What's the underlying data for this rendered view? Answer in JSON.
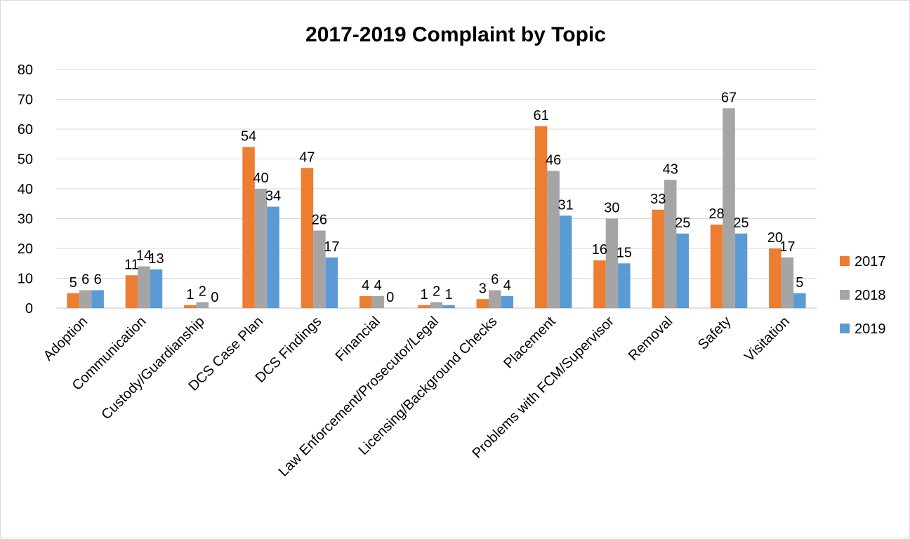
{
  "chart_data": {
    "type": "bar",
    "title": "2017-2019 Complaint by Topic",
    "xlabel": "",
    "ylabel": "",
    "ylim": [
      0,
      80
    ],
    "yticks": [
      0,
      10,
      20,
      30,
      40,
      50,
      60,
      70,
      80
    ],
    "grid": true,
    "legend_position": "right",
    "categories": [
      "Adoption",
      "Communication",
      "Custody/Guardianship",
      "DCS Case Plan",
      "DCS Findings",
      "Financial",
      "Law Enforcement/Prosecutor/Legal",
      "Licensing/Background Checks",
      "Placement",
      "Problems with FCM/Supervisor",
      "Removal",
      "Safety",
      "Visitation"
    ],
    "series": [
      {
        "name": "2017",
        "color": "#ED7D31",
        "values": [
          5,
          11,
          1,
          54,
          47,
          4,
          1,
          3,
          61,
          16,
          33,
          28,
          20
        ]
      },
      {
        "name": "2018",
        "color": "#A5A5A5",
        "values": [
          6,
          14,
          2,
          40,
          26,
          4,
          2,
          6,
          46,
          30,
          43,
          67,
          17
        ]
      },
      {
        "name": "2019",
        "color": "#5B9BD5",
        "values": [
          6,
          13,
          0,
          34,
          17,
          0,
          1,
          4,
          31,
          15,
          25,
          25,
          5
        ]
      }
    ]
  }
}
